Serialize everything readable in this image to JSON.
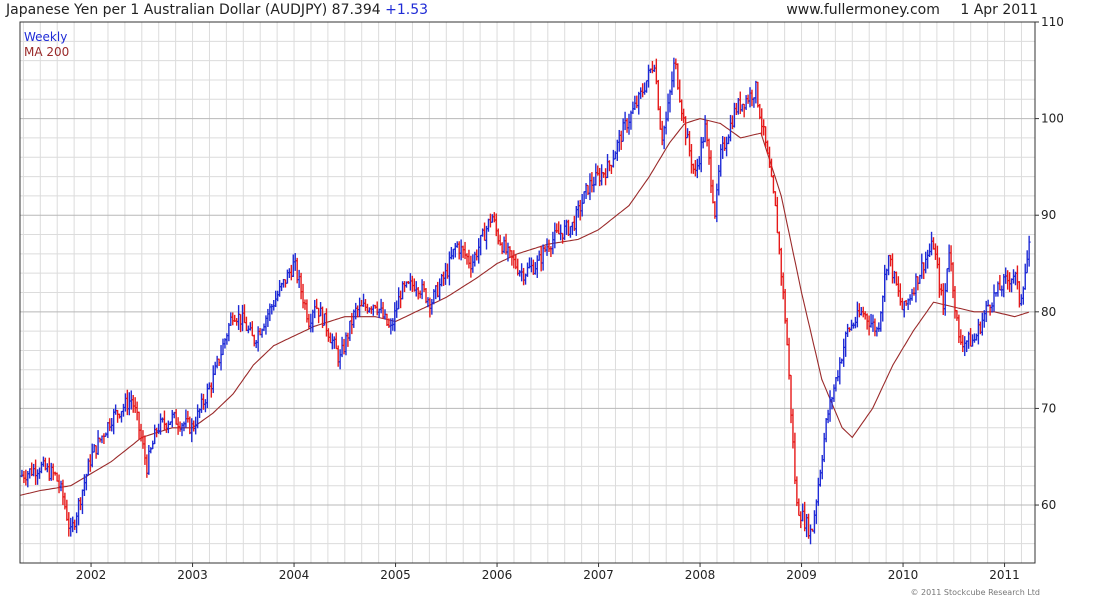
{
  "header": {
    "title": "Japanese Yen per 1 Australian Dollar (AUDJPY)",
    "last_value": "87.394",
    "change": "+1.53",
    "site": "www.fullermoney.com",
    "date": "1 Apr 2011"
  },
  "legend": {
    "weekly_label": "Weekly",
    "ma_label": "MA 200"
  },
  "credit": "© 2011 Stockcube Research Ltd",
  "colors": {
    "up_bar": "#1f2bd6",
    "down_bar": "#e61a1a",
    "ma_line": "#9a2a2a",
    "grid": "#dcdcdc"
  },
  "chart_data": {
    "type": "line",
    "series": [
      {
        "name": "Weekly",
        "style": "ohlc-bars",
        "x": [
          2001.3,
          2001.5,
          2001.65,
          2001.72,
          2001.8,
          2002.0,
          2002.2,
          2002.4,
          2002.45,
          2002.55,
          2002.65,
          2002.8,
          2003.0,
          2003.2,
          2003.4,
          2003.5,
          2003.6,
          2003.7,
          2003.85,
          2004.0,
          2004.15,
          2004.2,
          2004.3,
          2004.45,
          2004.6,
          2004.8,
          2004.95,
          2005.05,
          2005.2,
          2005.35,
          2005.5,
          2005.6,
          2005.75,
          2005.95,
          2006.0,
          2006.1,
          2006.25,
          2006.4,
          2006.5,
          2006.6,
          2006.75,
          2006.9,
          2007.1,
          2007.25,
          2007.4,
          2007.55,
          2007.62,
          2007.67,
          2007.75,
          2007.85,
          2007.95,
          2008.05,
          2008.15,
          2008.2,
          2008.35,
          2008.55,
          2008.65,
          2008.75,
          2008.85,
          2008.95,
          2009.1,
          2009.25,
          2009.45,
          2009.6,
          2009.75,
          2009.85,
          2010.0,
          2010.2,
          2010.3,
          2010.4,
          2010.45,
          2010.55,
          2010.7,
          2010.85,
          2011.0,
          2011.1,
          2011.15,
          2011.2,
          2011.25
        ],
        "values": [
          63,
          64,
          63,
          61,
          57,
          65,
          69,
          71,
          69,
          64,
          68,
          69,
          68,
          73,
          80,
          79,
          77,
          79,
          82,
          85,
          79,
          81,
          79,
          75,
          80,
          81,
          78,
          82,
          83,
          81,
          84,
          87,
          85,
          90,
          88,
          86,
          84,
          85,
          87,
          88,
          89,
          93,
          95,
          99,
          102,
          106,
          98,
          100,
          106,
          99,
          94,
          99,
          90,
          96,
          101,
          103,
          97,
          90,
          78,
          60,
          57,
          69,
          78,
          80,
          78,
          86,
          80,
          85,
          87,
          80,
          87,
          77,
          77,
          81,
          83,
          84,
          81,
          84,
          87
        ]
      },
      {
        "name": "MA 200",
        "style": "line",
        "x": [
          2001.3,
          2001.5,
          2001.8,
          2002.2,
          2002.5,
          2002.8,
          2003.0,
          2003.2,
          2003.4,
          2003.6,
          2003.8,
          2004.0,
          2004.2,
          2004.5,
          2004.8,
          2005.0,
          2005.2,
          2005.5,
          2005.8,
          2006.0,
          2006.2,
          2006.5,
          2006.8,
          2007.0,
          2007.3,
          2007.5,
          2007.7,
          2007.85,
          2008.0,
          2008.2,
          2008.4,
          2008.6,
          2008.8,
          2009.0,
          2009.2,
          2009.4,
          2009.5,
          2009.7,
          2009.9,
          2010.1,
          2010.3,
          2010.5,
          2010.7,
          2010.9,
          2011.1,
          2011.25
        ],
        "values": [
          61,
          61.5,
          62,
          64.5,
          67,
          68,
          68,
          69.5,
          71.5,
          74.5,
          76.5,
          77.5,
          78.5,
          79.5,
          79.5,
          79,
          80,
          81.5,
          83.5,
          85,
          86,
          87,
          87.5,
          88.5,
          91,
          94,
          97.5,
          99.5,
          100,
          99.5,
          98,
          98.5,
          92,
          82,
          73,
          68,
          67,
          70,
          74.5,
          78,
          81,
          80.5,
          80,
          80,
          79.5,
          80
        ]
      }
    ],
    "xlim": [
      2001.3,
      2011.3
    ],
    "ylim": [
      54,
      110
    ],
    "x_ticks": [
      2002,
      2003,
      2004,
      2005,
      2006,
      2007,
      2008,
      2009,
      2010,
      2011
    ],
    "x_tick_labels": [
      "2002",
      "2003",
      "2004",
      "2005",
      "2006",
      "2007",
      "2008",
      "2009",
      "2010",
      "2011"
    ],
    "y_ticks": [
      60,
      70,
      80,
      90,
      100,
      110
    ],
    "y_tick_labels": [
      "60",
      "70",
      "80",
      "90",
      "100",
      "110"
    ],
    "y_axis_side": "right",
    "grid": true,
    "legend_position": "top-left"
  }
}
